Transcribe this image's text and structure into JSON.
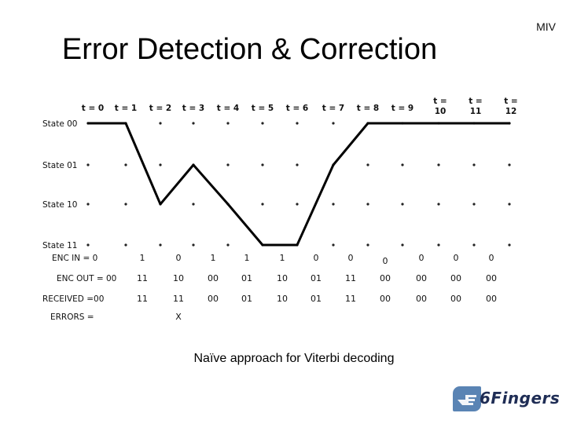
{
  "slide": {
    "title": "Error Detection & Correction",
    "corner_tag": "MIV",
    "caption": "Naïve approach for Viterbi decoding",
    "logo_text": "6Fingers"
  },
  "trellis": {
    "time_labels": [
      [
        "t = 0"
      ],
      [
        "t = 1"
      ],
      [
        "t = 2"
      ],
      [
        "t = 3"
      ],
      [
        "t = 4"
      ],
      [
        "t = 5"
      ],
      [
        "t = 6"
      ],
      [
        "t = 7"
      ],
      [
        "t = 8"
      ],
      [
        "t = 9"
      ],
      [
        "t =",
        "10"
      ],
      [
        "t =",
        "11"
      ],
      [
        "t =",
        "12"
      ]
    ],
    "states": [
      "State 00",
      "State 01",
      "State 10",
      "State 11"
    ],
    "path_states": [
      0,
      0,
      2,
      1,
      2,
      3,
      3,
      1,
      0,
      0,
      0,
      0,
      0
    ],
    "rows": [
      {
        "label": "ENC IN = 0",
        "values": [
          "1",
          "0",
          "1",
          "1",
          "1",
          "0",
          "0",
          "0",
          "0",
          "0",
          "0"
        ]
      },
      {
        "label": "ENC OUT = 00",
        "values": [
          "11",
          "10",
          "00",
          "01",
          "10",
          "01",
          "11",
          "00",
          "00",
          "00",
          "00"
        ]
      },
      {
        "label": "RECEIVED =00",
        "values": [
          "11",
          "11",
          "00",
          "01",
          "10",
          "01",
          "11",
          "00",
          "00",
          "00",
          "00"
        ]
      },
      {
        "label": "ERRORS =",
        "values": [
          "",
          "X",
          "",
          "",
          "",
          "",
          "",
          "",
          "",
          "",
          ""
        ]
      }
    ]
  }
}
